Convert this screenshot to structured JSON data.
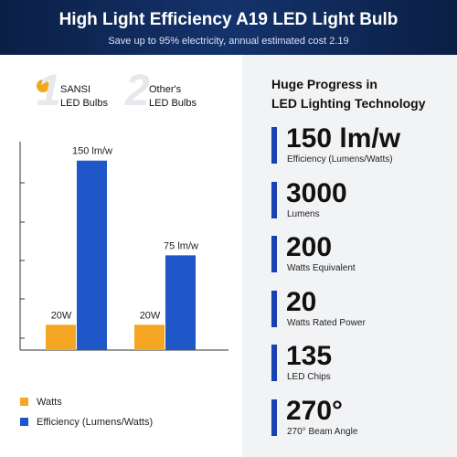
{
  "header": {
    "title": "High Light Efficiency A19 LED Light Bulb",
    "subtitle": "Save up to 95% electricity, annual estimated cost 2.19"
  },
  "rank_marks": [
    "1",
    "2"
  ],
  "chart_data": {
    "type": "bar",
    "categories": [
      "SANSI\nLED Bulbs",
      "Other's\nLED Bulbs"
    ],
    "series": [
      {
        "name": "Watts",
        "color": "#f5a623",
        "values": [
          20,
          20
        ],
        "value_labels": [
          "20W",
          "20W"
        ]
      },
      {
        "name": "Efficiency (Lumens/Watts)",
        "color": "#1f57c8",
        "values": [
          150,
          75
        ],
        "value_labels": [
          "150 lm/w",
          "75 lm/w"
        ]
      }
    ],
    "ylim": [
      0,
      165
    ]
  },
  "specs": {
    "title": "Huge Progress in\nLED Lighting Technology",
    "items": [
      {
        "value": "150 lm/w",
        "label": "Efficiency (Lumens/Watts)"
      },
      {
        "value": "3000",
        "label": "Lumens"
      },
      {
        "value": "200",
        "label": "Watts Equivalent"
      },
      {
        "value": "20",
        "label": "Watts Rated Power"
      },
      {
        "value": "135",
        "label": "LED Chips"
      },
      {
        "value": "270°",
        "label": "270° Beam Angle"
      }
    ]
  }
}
